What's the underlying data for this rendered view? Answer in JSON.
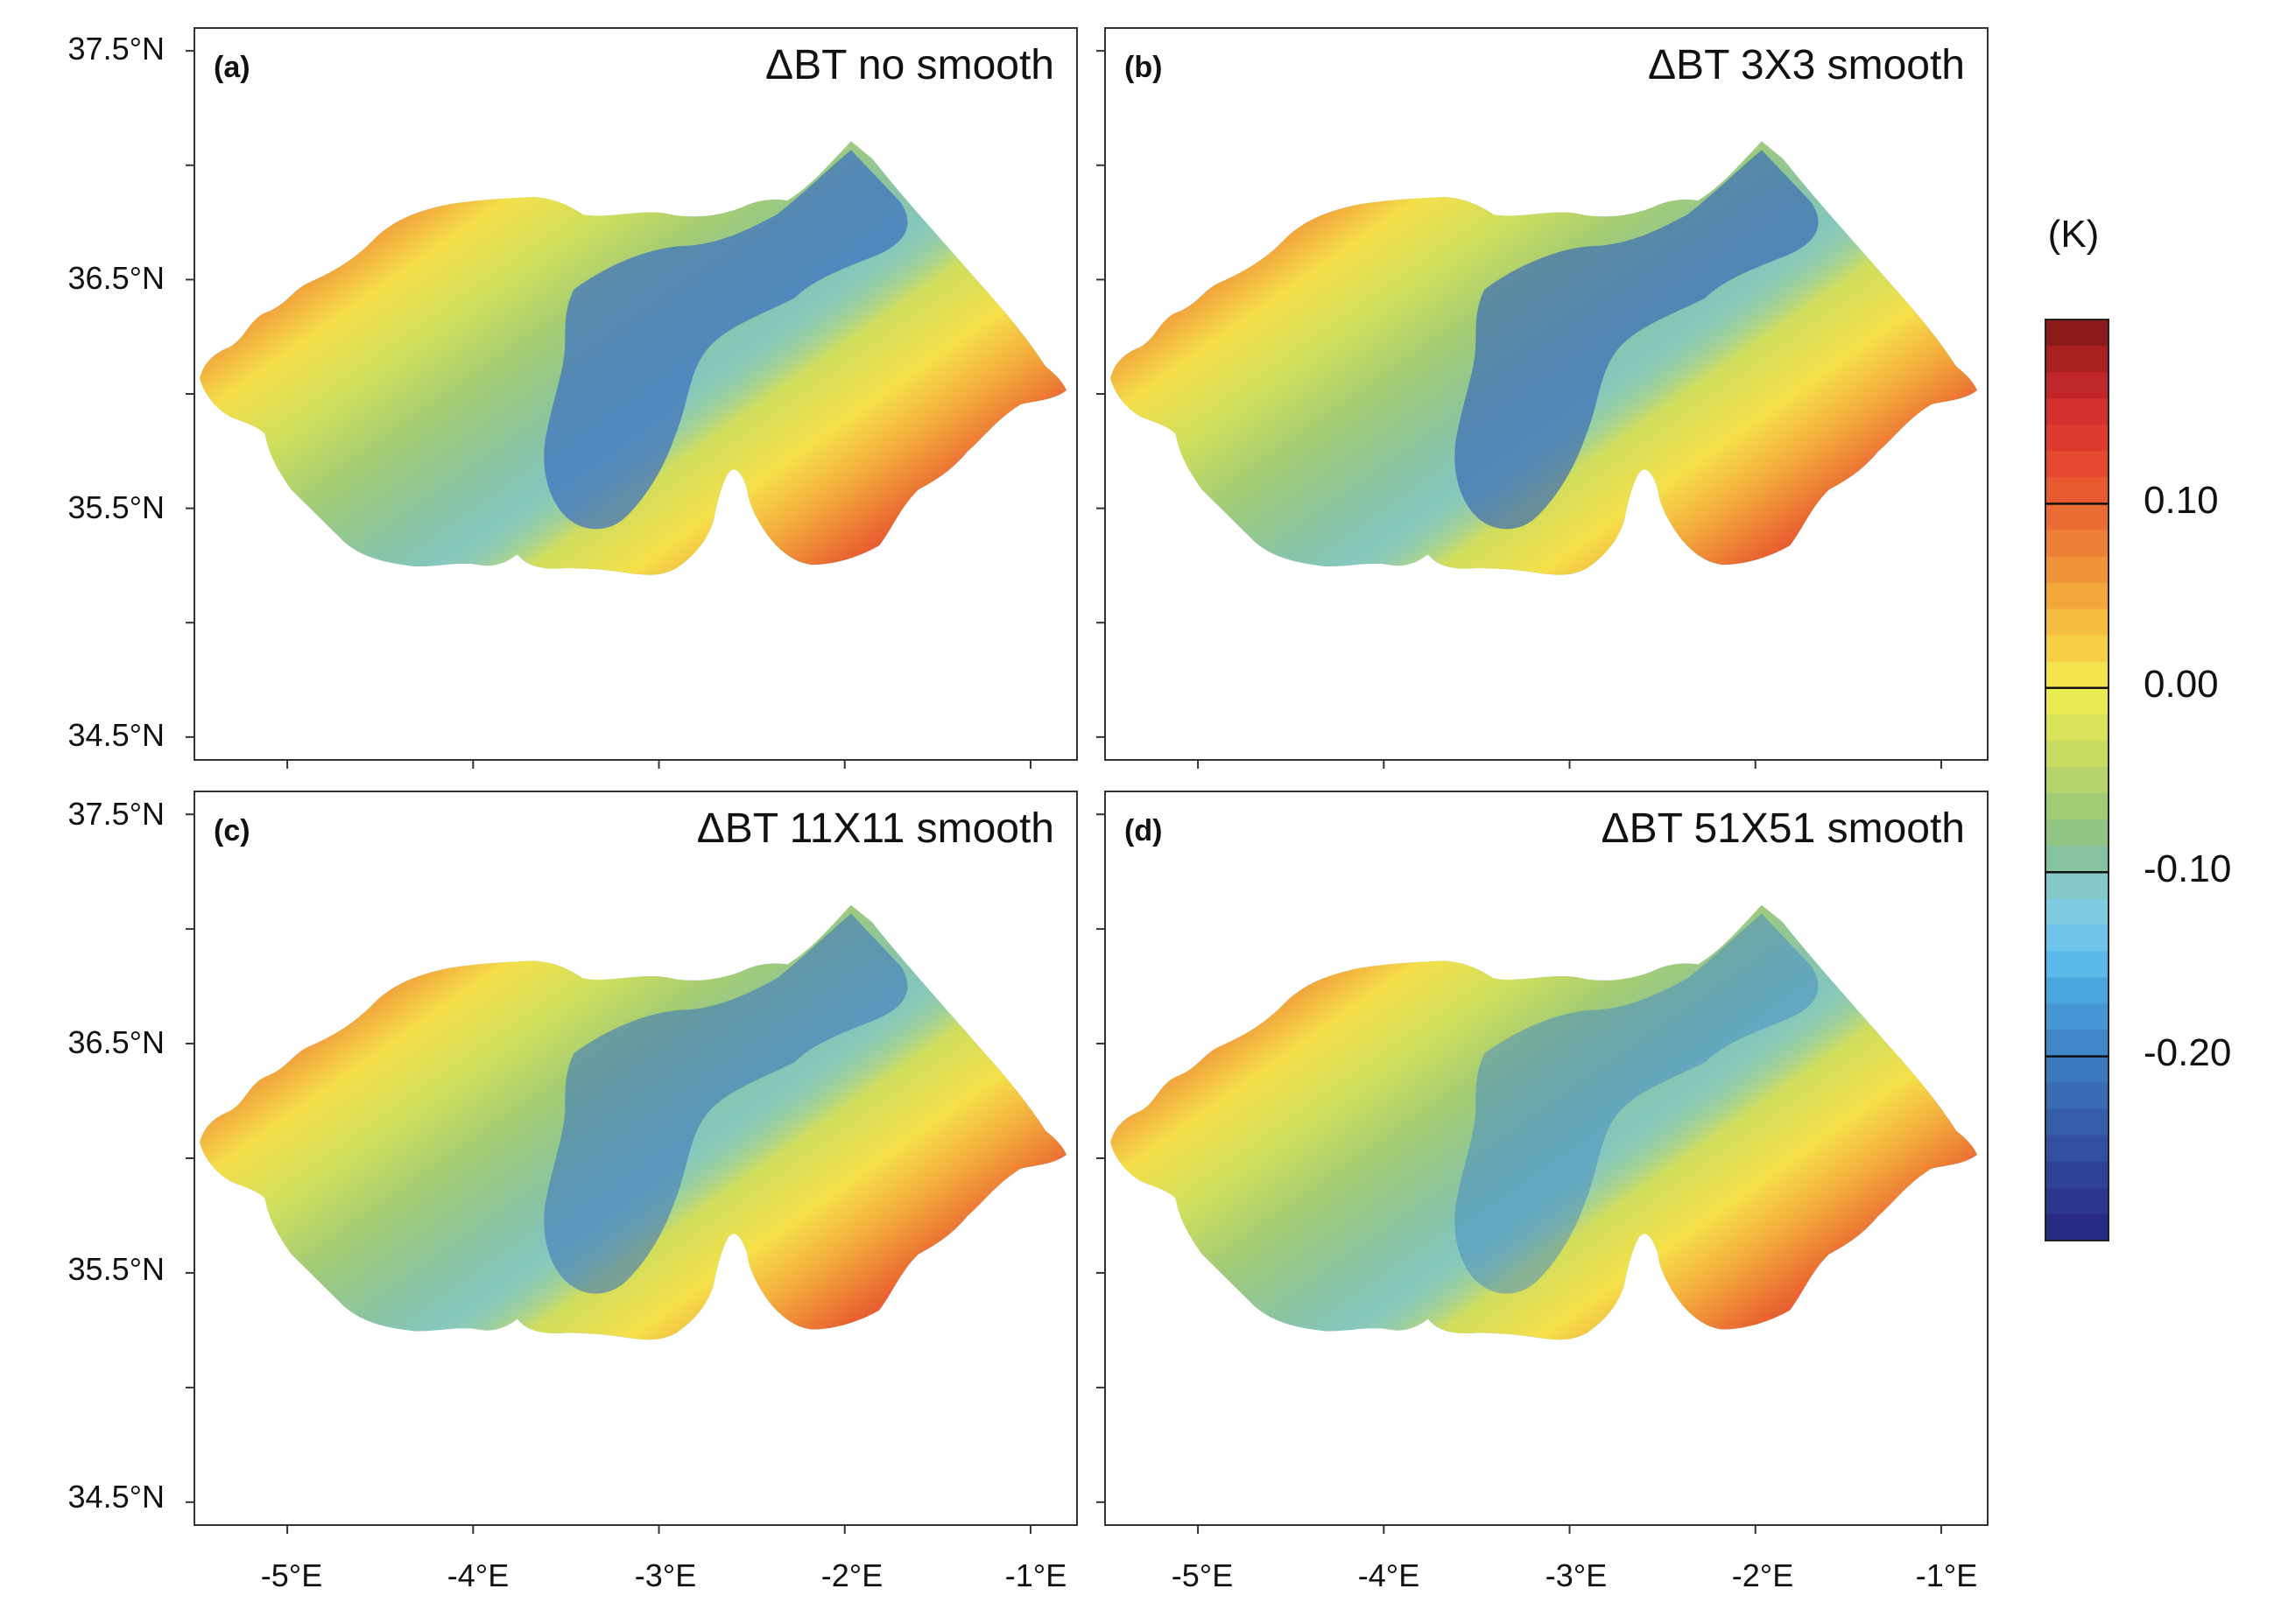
{
  "figure": {
    "panels": [
      {
        "id": "a",
        "label": "(a)",
        "title": "ΔBT no smooth"
      },
      {
        "id": "b",
        "label": "(b)",
        "title": "ΔBT 3X3 smooth"
      },
      {
        "id": "c",
        "label": "(c)",
        "title": "ΔBT 11X11 smooth"
      },
      {
        "id": "d",
        "label": "(d)",
        "title": "ΔBT 51X51 smooth"
      }
    ],
    "lat_ticks": [
      {
        "value": 37.5,
        "label": "37.5°N"
      },
      {
        "value": 36.5,
        "label": "36.5°N"
      },
      {
        "value": 35.5,
        "label": "35.5°N"
      },
      {
        "value": 34.5,
        "label": "34.5°N"
      }
    ],
    "lon_ticks": [
      {
        "value": -5,
        "label": "-5°E"
      },
      {
        "value": -4,
        "label": "-4°E"
      },
      {
        "value": -3,
        "label": "-3°E"
      },
      {
        "value": -2,
        "label": "-2°E"
      },
      {
        "value": -1,
        "label": "-1°E"
      }
    ],
    "colorbar": {
      "unit": "(K)",
      "range": [
        -0.3,
        0.2
      ],
      "ticks": [
        {
          "value": 0.1,
          "label": "0.10"
        },
        {
          "value": 0.0,
          "label": "0.00"
        },
        {
          "value": -0.1,
          "label": "-0.10"
        },
        {
          "value": -0.2,
          "label": "-0.20"
        }
      ],
      "colors_top_to_bottom": [
        "#8b1a1a",
        "#a8201f",
        "#c1272a",
        "#d5302e",
        "#e03a2f",
        "#e5492f",
        "#e85a30",
        "#ea6b33",
        "#ed7e36",
        "#f09238",
        "#f3a73b",
        "#f6bc3f",
        "#f5d044",
        "#f4e34c",
        "#eaea52",
        "#d9e35a",
        "#c7db60",
        "#b4d36a",
        "#a2cb76",
        "#91c584",
        "#86c2a0",
        "#86c8c7",
        "#7fcbe0",
        "#6fc4ea",
        "#5ab8e8",
        "#4ba6de",
        "#4596d2",
        "#4187c7",
        "#3d78bc",
        "#3a6ab2",
        "#365ca8",
        "#334f9f",
        "#2f4396",
        "#2b378c",
        "#272c82"
      ]
    },
    "map_extent": {
      "lon": [
        -5.5,
        -0.75
      ],
      "lat": [
        34.4,
        37.6
      ]
    }
  }
}
